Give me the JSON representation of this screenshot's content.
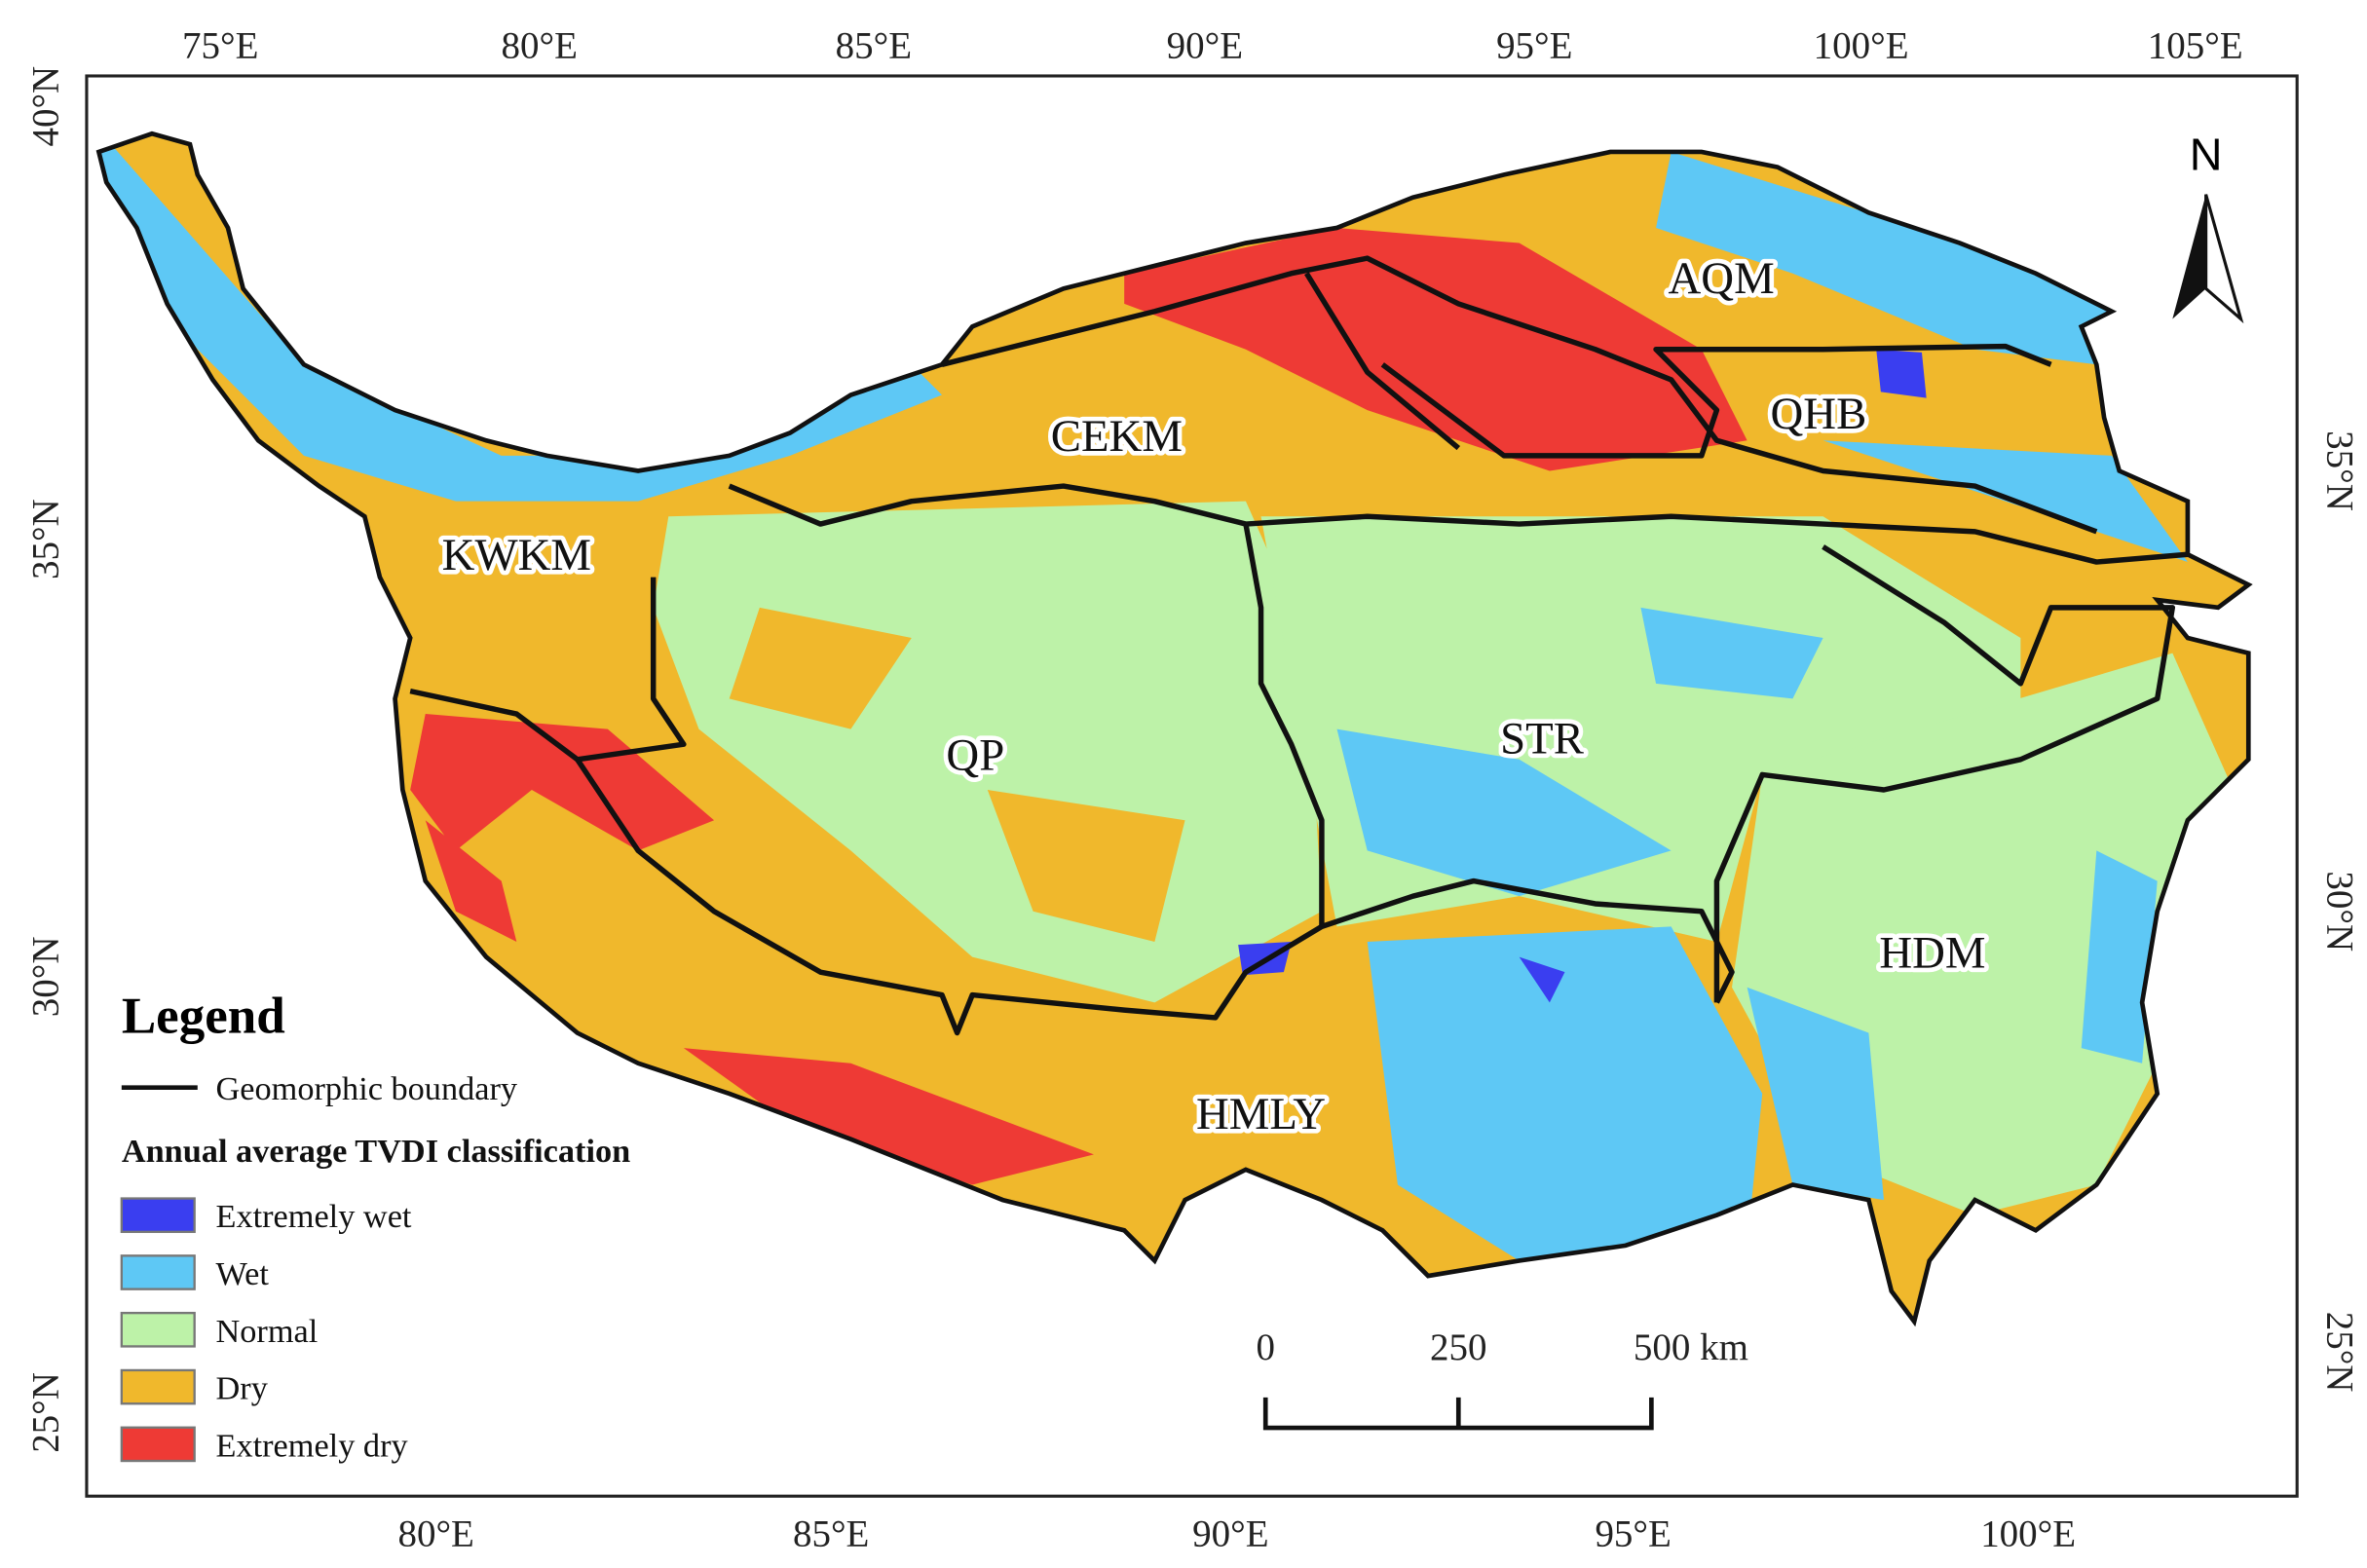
{
  "axes": {
    "top": [
      "75°E",
      "80°E",
      "85°E",
      "90°E",
      "95°E",
      "100°E",
      "105°E"
    ],
    "bottom": [
      "80°E",
      "85°E",
      "90°E",
      "95°E",
      "100°E"
    ],
    "left": [
      "40°N",
      "35°N",
      "30°N",
      "25°N"
    ],
    "right": [
      "35°N",
      "30°N",
      "25°N"
    ]
  },
  "regions": [
    "AQM",
    "QHB",
    "CEKM",
    "KWKM",
    "QP",
    "STR",
    "HDM",
    "HMLY"
  ],
  "north": "N",
  "legend": {
    "title": "Legend",
    "boundary": "Geomorphic boundary",
    "subtitle": "Annual average TVDI classification",
    "items": [
      {
        "label": "Extremely wet",
        "color": "#3a3ef0"
      },
      {
        "label": "Wet",
        "color": "#5ec8f5"
      },
      {
        "label": "Normal",
        "color": "#bdf2a8"
      },
      {
        "label": "Dry",
        "color": "#f0b82c"
      },
      {
        "label": "Extremely dry",
        "color": "#ee3a35"
      }
    ]
  },
  "scale_bar": [
    "0",
    "250",
    "500 km"
  ]
}
